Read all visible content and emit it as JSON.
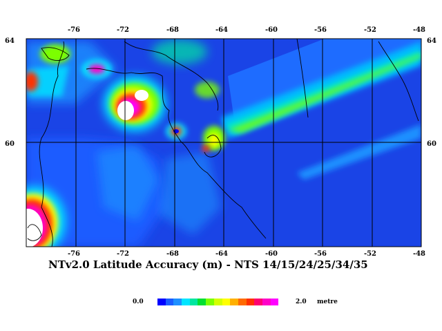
{
  "title": "NTv2.0 Latitude Accuracy (m) - NTS 14/15/24/25/34/35",
  "map": {
    "extent": {
      "lon_min": -80,
      "lon_max": -48,
      "lat_min": 57,
      "lat_max": 64
    },
    "longitude_ticks": [
      "-76",
      "-72",
      "-68",
      "-64",
      "-60",
      "-56",
      "-52",
      "-48"
    ],
    "latitude_ticks": [
      "64",
      "60"
    ],
    "ocean_color": "#1a44e6",
    "coastline_color": "#000000"
  },
  "legend": {
    "min_label": "0.0",
    "max_label": "2.0",
    "unit": "metre",
    "colors": [
      "#0000ff",
      "#1a5cff",
      "#1e90ff",
      "#00e5ff",
      "#00e6a0",
      "#00e030",
      "#7cff00",
      "#d4ff00",
      "#ffff00",
      "#ffb000",
      "#ff6a00",
      "#ff3000",
      "#ff0070",
      "#ff00c8",
      "#ff00ff"
    ]
  }
}
